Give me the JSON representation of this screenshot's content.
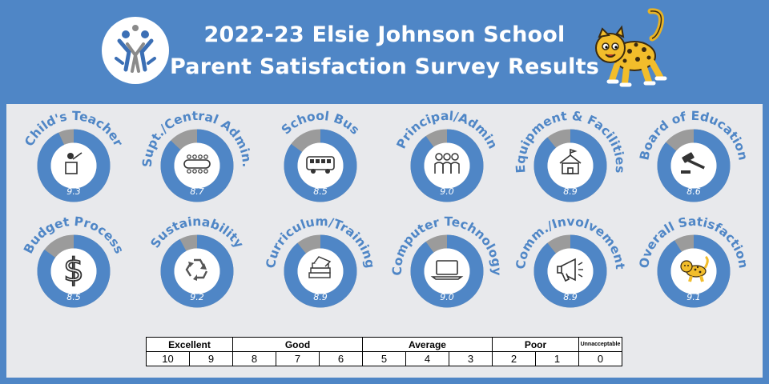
{
  "header": {
    "title_line1": "2022-23 Elsie Johnson School",
    "title_line2": "Parent Satisfaction Survey Results"
  },
  "colors": {
    "background": "#4f86c6",
    "panel": "#e8e9ec",
    "ring_fill": "#4f86c6",
    "ring_rest": "#9b9b9b",
    "label_text": "#4f86c6",
    "value_text": "#ffffff"
  },
  "chart_data": {
    "type": "donut",
    "scale_max": 10,
    "categories": [
      {
        "name": "Child's Teacher",
        "value": 9.3,
        "icon": "teacher-icon"
      },
      {
        "name": "Supt./Central Admin.",
        "value": 8.7,
        "icon": "conference-table-icon"
      },
      {
        "name": "School Bus",
        "value": 8.5,
        "icon": "school-bus-icon"
      },
      {
        "name": "Principal/Admin",
        "value": 9.0,
        "icon": "people-group-icon"
      },
      {
        "name": "Equipment & Facilities",
        "value": 8.9,
        "icon": "school-building-icon"
      },
      {
        "name": "Board of Education",
        "value": 8.6,
        "icon": "gavel-icon"
      },
      {
        "name": "Budget Process",
        "value": 8.5,
        "icon": "dollar-icon"
      },
      {
        "name": "Sustainability",
        "value": 9.2,
        "icon": "recycle-icon"
      },
      {
        "name": "Curriculum/Training",
        "value": 8.9,
        "icon": "books-icon"
      },
      {
        "name": "Computer Technology",
        "value": 9.0,
        "icon": "laptop-icon"
      },
      {
        "name": "Comm./Involvement",
        "value": 8.9,
        "icon": "megaphone-icon"
      },
      {
        "name": "Overall Satisfaction",
        "value": 9.1,
        "icon": "jaguar-icon"
      }
    ]
  },
  "legend": {
    "categories": [
      {
        "label": "Excellent",
        "span": 2
      },
      {
        "label": "Good",
        "span": 3
      },
      {
        "label": "Average",
        "span": 3
      },
      {
        "label": "Poor",
        "span": 2
      },
      {
        "label": "Unnacceptable",
        "span": 1
      }
    ],
    "scale": [
      "10",
      "9",
      "8",
      "7",
      "6",
      "5",
      "4",
      "3",
      "2",
      "1",
      "0"
    ]
  }
}
